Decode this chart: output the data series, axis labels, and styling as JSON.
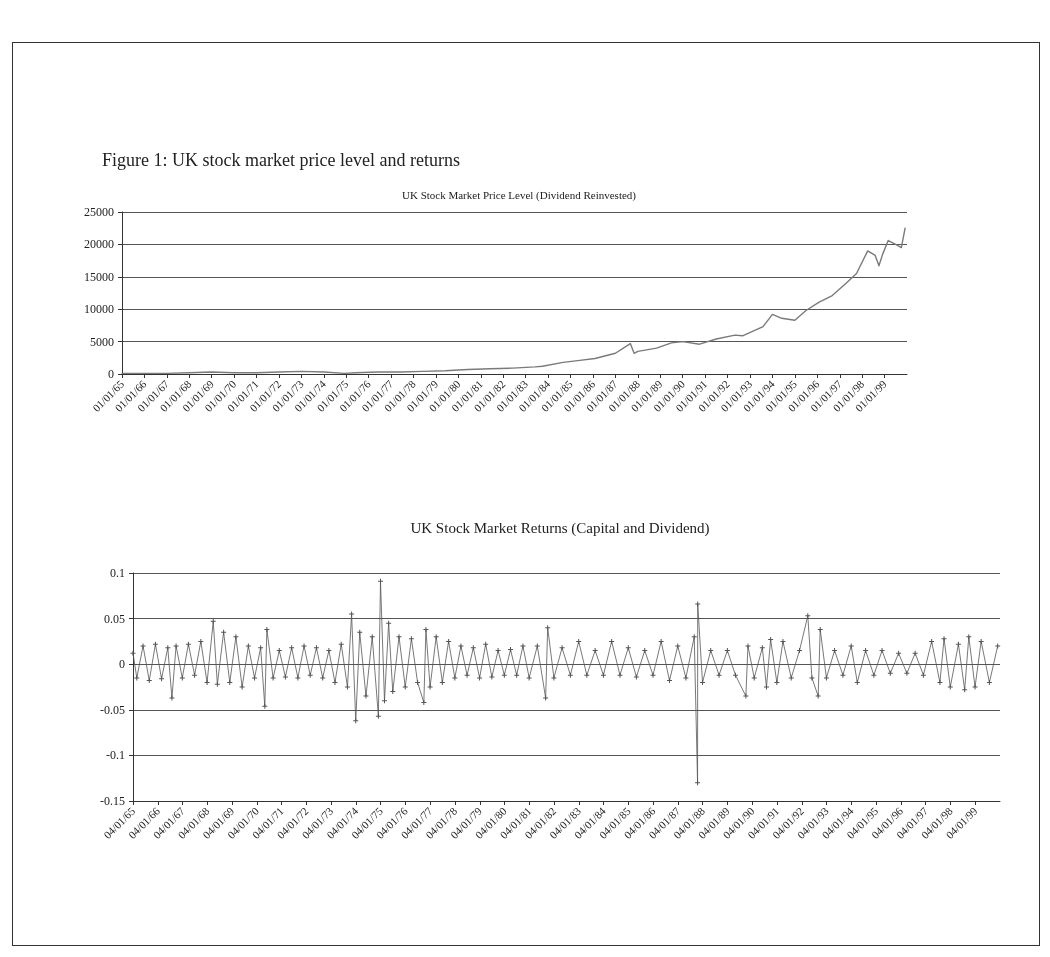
{
  "chart_data": [
    {
      "type": "line",
      "title": "Figure 1: UK stock market price level and returns",
      "subtitle": "UK Stock Market Price Level (Dividend Reinvested)",
      "x": [
        "1965-01",
        "1966-01",
        "1967-01",
        "1968-01",
        "1969-01",
        "1970-01",
        "1971-01",
        "1972-01",
        "1973-01",
        "1974-01",
        "1974-12",
        "1975-06",
        "1976-06",
        "1977-06",
        "1978-06",
        "1979-06",
        "1980-06",
        "1981-06",
        "1982-06",
        "1983-06",
        "1983-10",
        "1984-09",
        "1985-06",
        "1986-02",
        "1987-01",
        "1987-09",
        "1987-11",
        "1988-01",
        "1988-11",
        "1989-07",
        "1990-01",
        "1990-10",
        "1991-07",
        "1992-05",
        "1992-09",
        "1993-08",
        "1994-01",
        "1994-06",
        "1995-01",
        "1995-07",
        "1996-02",
        "1996-09",
        "1997-04",
        "1997-10",
        "1998-04",
        "1998-08",
        "1998-10",
        "1998-12",
        "1999-03",
        "1999-07",
        "1999-10",
        "1999-12"
      ],
      "values": [
        100,
        100,
        100,
        200,
        300,
        200,
        200,
        300,
        400,
        300,
        100,
        200,
        300,
        300,
        400,
        500,
        700,
        800,
        900,
        1100,
        1200,
        1800,
        2100,
        2400,
        3200,
        4700,
        3200,
        3500,
        4000,
        4800,
        5000,
        4600,
        5400,
        6000,
        5900,
        7300,
        9200,
        8600,
        8300,
        9800,
        11100,
        12100,
        13900,
        15500,
        19000,
        18300,
        16700,
        18500,
        20600,
        20000,
        19500,
        22500
      ],
      "color": "#7a7a7a",
      "xlim": [
        "1965-01-01",
        "2000-01-01"
      ],
      "xticks": [
        {
          "value": "1965-01-01",
          "label": "01/01/65"
        },
        {
          "value": "1966-01-01",
          "label": "01/01/66"
        },
        {
          "value": "1967-01-01",
          "label": "01/01/67"
        },
        {
          "value": "1968-01-01",
          "label": "01/01/68"
        },
        {
          "value": "1969-01-01",
          "label": "01/01/69"
        },
        {
          "value": "1970-01-01",
          "label": "01/01/70"
        },
        {
          "value": "1971-01-01",
          "label": "01/01/71"
        },
        {
          "value": "1972-01-01",
          "label": "01/01/72"
        },
        {
          "value": "1973-01-01",
          "label": "01/01/73"
        },
        {
          "value": "1974-01-01",
          "label": "01/01/74"
        },
        {
          "value": "1975-01-01",
          "label": "01/01/75"
        },
        {
          "value": "1976-01-01",
          "label": "01/01/76"
        },
        {
          "value": "1977-01-01",
          "label": "01/01/77"
        },
        {
          "value": "1978-01-01",
          "label": "01/01/78"
        },
        {
          "value": "1979-01-01",
          "label": "01/01/79"
        },
        {
          "value": "1980-01-01",
          "label": "01/01/80"
        },
        {
          "value": "1981-01-01",
          "label": "01/01/81"
        },
        {
          "value": "1982-01-01",
          "label": "01/01/82"
        },
        {
          "value": "1983-01-01",
          "label": "01/01/83"
        },
        {
          "value": "1984-01-01",
          "label": "01/01/84"
        },
        {
          "value": "1985-01-01",
          "label": "01/01/85"
        },
        {
          "value": "1986-01-01",
          "label": "01/01/86"
        },
        {
          "value": "1987-01-01",
          "label": "01/01/87"
        },
        {
          "value": "1988-01-01",
          "label": "01/01/88"
        },
        {
          "value": "1989-01-01",
          "label": "01/01/89"
        },
        {
          "value": "1990-01-01",
          "label": "01/01/90"
        },
        {
          "value": "1991-01-01",
          "label": "01/01/91"
        },
        {
          "value": "1992-01-01",
          "label": "01/01/92"
        },
        {
          "value": "1993-01-01",
          "label": "01/01/93"
        },
        {
          "value": "1994-01-01",
          "label": "01/01/94"
        },
        {
          "value": "1995-01-01",
          "label": "01/01/95"
        },
        {
          "value": "1996-01-01",
          "label": "01/01/96"
        },
        {
          "value": "1997-01-01",
          "label": "01/01/97"
        },
        {
          "value": "1998-01-01",
          "label": "01/01/98"
        },
        {
          "value": "1999-01-01",
          "label": "01/01/99"
        }
      ],
      "ylim": [
        0,
        25000
      ],
      "yticks": [
        0,
        5000,
        10000,
        15000,
        20000,
        25000
      ],
      "grid": "y"
    },
    {
      "type": "line",
      "title": "UK Stock Market Returns (Capital and Dividend)",
      "x": [
        "1965-01-04",
        "1965-03",
        "1965-06",
        "1965-09",
        "1965-12",
        "1966-03",
        "1966-06",
        "1966-08",
        "1966-10",
        "1967-01",
        "1967-04",
        "1967-07",
        "1967-10",
        "1968-01",
        "1968-04",
        "1968-06",
        "1968-09",
        "1968-12",
        "1969-03",
        "1969-06",
        "1969-09",
        "1969-12",
        "1970-03",
        "1970-05",
        "1970-06",
        "1970-09",
        "1970-12",
        "1971-03",
        "1971-06",
        "1971-09",
        "1971-12",
        "1972-03",
        "1972-06",
        "1972-09",
        "1972-12",
        "1973-03",
        "1973-06",
        "1973-09",
        "1973-11",
        "1974-01",
        "1974-03",
        "1974-06",
        "1974-09",
        "1974-12",
        "1975-01",
        "1975-03",
        "1975-05",
        "1975-07",
        "1975-10",
        "1976-01",
        "1976-04",
        "1976-07",
        "1976-10",
        "1976-11",
        "1977-01",
        "1977-04",
        "1977-07",
        "1977-10",
        "1978-01",
        "1978-04",
        "1978-07",
        "1978-10",
        "1979-01",
        "1979-04",
        "1979-07",
        "1979-10",
        "1980-01",
        "1980-04",
        "1980-07",
        "1980-10",
        "1981-01",
        "1981-05",
        "1981-09",
        "1981-10",
        "1982-01",
        "1982-05",
        "1982-09",
        "1983-01",
        "1983-05",
        "1983-09",
        "1984-01",
        "1984-05",
        "1984-09",
        "1985-01",
        "1985-05",
        "1985-09",
        "1986-01",
        "1986-05",
        "1986-09",
        "1987-01",
        "1987-05",
        "1987-09",
        "1987-10-20",
        "1987-10-22",
        "1988-01",
        "1988-05",
        "1988-09",
        "1989-01",
        "1989-05",
        "1989-10",
        "1989-11",
        "1990-02",
        "1990-06",
        "1990-08",
        "1990-10",
        "1991-01",
        "1991-04",
        "1991-08",
        "1991-12",
        "1992-04",
        "1992-06",
        "1992-09",
        "1992-10",
        "1993-01",
        "1993-05",
        "1993-09",
        "1994-01",
        "1994-04",
        "1994-08",
        "1994-12",
        "1995-04",
        "1995-08",
        "1995-12",
        "1996-04",
        "1996-08",
        "1996-12",
        "1997-04",
        "1997-08",
        "1997-10",
        "1998-01",
        "1998-05",
        "1998-08",
        "1998-10",
        "1999-01",
        "1999-04",
        "1999-08",
        "1999-12"
      ],
      "values": [
        0.012,
        -0.015,
        0.02,
        -0.018,
        0.022,
        -0.016,
        0.018,
        -0.037,
        0.02,
        -0.015,
        0.022,
        -0.012,
        0.025,
        -0.02,
        0.047,
        -0.022,
        0.035,
        -0.02,
        0.03,
        -0.025,
        0.02,
        -0.015,
        0.018,
        -0.046,
        0.038,
        -0.015,
        0.015,
        -0.014,
        0.018,
        -0.015,
        0.02,
        -0.012,
        0.018,
        -0.015,
        0.015,
        -0.02,
        0.022,
        -0.025,
        0.055,
        -0.062,
        0.035,
        -0.035,
        0.03,
        -0.057,
        0.091,
        -0.04,
        0.045,
        -0.03,
        0.03,
        -0.025,
        0.028,
        -0.02,
        -0.042,
        0.038,
        -0.025,
        0.03,
        -0.02,
        0.025,
        -0.015,
        0.02,
        -0.012,
        0.018,
        -0.015,
        0.022,
        -0.014,
        0.015,
        -0.012,
        0.016,
        -0.012,
        0.02,
        -0.015,
        0.02,
        -0.037,
        0.04,
        -0.015,
        0.018,
        -0.012,
        0.025,
        -0.012,
        0.015,
        -0.012,
        0.025,
        -0.012,
        0.018,
        -0.014,
        0.015,
        -0.012,
        0.025,
        -0.018,
        0.02,
        -0.015,
        0.03,
        -0.13,
        0.066,
        -0.02,
        0.015,
        -0.012,
        0.015,
        -0.012,
        -0.035,
        0.02,
        -0.015,
        0.018,
        -0.025,
        0.027,
        -0.02,
        0.025,
        -0.015,
        0.015,
        0.053,
        -0.015,
        -0.035,
        0.038,
        -0.015,
        0.015,
        -0.012,
        0.02,
        -0.02,
        0.015,
        -0.012,
        0.015,
        -0.01,
        0.012,
        -0.01,
        0.012,
        -0.012,
        0.025,
        -0.02,
        0.028,
        -0.025,
        0.022,
        -0.028,
        0.03,
        -0.025,
        0.025,
        -0.02,
        0.02
      ],
      "color": "#555555",
      "marker": "cross",
      "xlim": [
        "1965-01-04",
        "2000-01-04"
      ],
      "xticks": [
        {
          "value": "1965-01-04",
          "label": "04/01/65"
        },
        {
          "value": "1966-01-04",
          "label": "04/01/66"
        },
        {
          "value": "1967-01-04",
          "label": "04/01/67"
        },
        {
          "value": "1968-01-04",
          "label": "04/01/68"
        },
        {
          "value": "1969-01-04",
          "label": "04/01/69"
        },
        {
          "value": "1970-01-04",
          "label": "04/01/70"
        },
        {
          "value": "1971-01-04",
          "label": "04/01/71"
        },
        {
          "value": "1972-01-04",
          "label": "04/01/72"
        },
        {
          "value": "1973-01-04",
          "label": "04/01/73"
        },
        {
          "value": "1974-01-04",
          "label": "04/01/74"
        },
        {
          "value": "1975-01-04",
          "label": "04/01/75"
        },
        {
          "value": "1976-01-04",
          "label": "04/01/76"
        },
        {
          "value": "1977-01-04",
          "label": "04/01/77"
        },
        {
          "value": "1978-01-04",
          "label": "04/01/78"
        },
        {
          "value": "1979-01-04",
          "label": "04/01/79"
        },
        {
          "value": "1980-01-04",
          "label": "04/01/80"
        },
        {
          "value": "1981-01-04",
          "label": "04/01/81"
        },
        {
          "value": "1982-01-04",
          "label": "04/01/82"
        },
        {
          "value": "1983-01-04",
          "label": "04/01/83"
        },
        {
          "value": "1984-01-04",
          "label": "04/01/84"
        },
        {
          "value": "1985-01-04",
          "label": "04/01/85"
        },
        {
          "value": "1986-01-04",
          "label": "04/01/86"
        },
        {
          "value": "1987-01-04",
          "label": "04/01/87"
        },
        {
          "value": "1988-01-04",
          "label": "04/01/88"
        },
        {
          "value": "1989-01-04",
          "label": "04/01/89"
        },
        {
          "value": "1990-01-04",
          "label": "04/01/90"
        },
        {
          "value": "1991-01-04",
          "label": "04/01/91"
        },
        {
          "value": "1992-01-04",
          "label": "04/01/92"
        },
        {
          "value": "1993-01-04",
          "label": "04/01/93"
        },
        {
          "value": "1994-01-04",
          "label": "04/01/94"
        },
        {
          "value": "1995-01-04",
          "label": "04/01/95"
        },
        {
          "value": "1996-01-04",
          "label": "04/01/96"
        },
        {
          "value": "1997-01-04",
          "label": "04/01/97"
        },
        {
          "value": "1998-01-04",
          "label": "04/01/98"
        },
        {
          "value": "1999-01-04",
          "label": "04/01/99"
        }
      ],
      "ylim": [
        -0.15,
        0.1
      ],
      "yticks": [
        -0.15,
        -0.1,
        -0.05,
        0,
        0.05,
        0.1
      ],
      "grid": "y"
    }
  ]
}
